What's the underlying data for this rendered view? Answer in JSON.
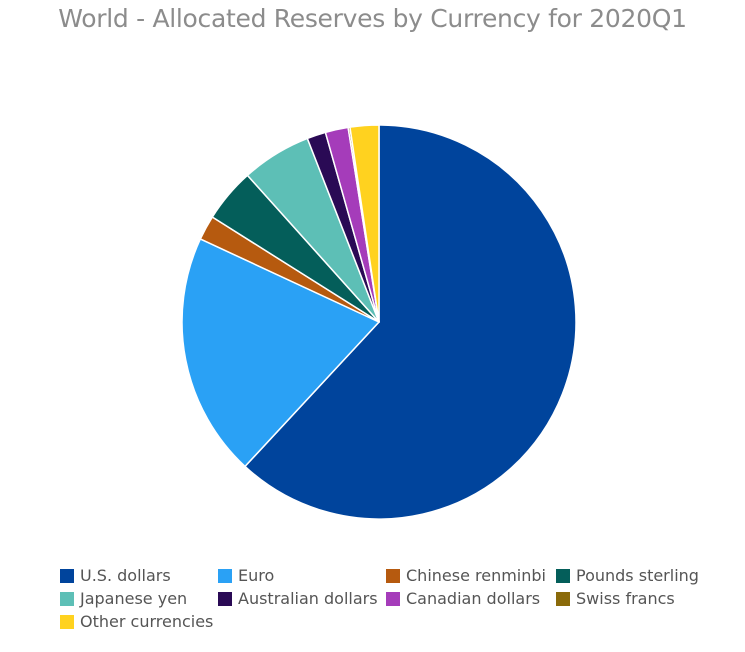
{
  "chart_data": {
    "type": "pie",
    "title": "World - Allocated Reserves by Currency for 2020Q1",
    "start_angle_deg": 0,
    "direction": "clockwise",
    "slices": [
      {
        "label": "U.S. dollars",
        "value": 61.99,
        "color": "#00449c"
      },
      {
        "label": "Euro",
        "value": 20.05,
        "color": "#2aa1f5"
      },
      {
        "label": "Chinese renminbi",
        "value": 2.02,
        "color": "#b65a0f"
      },
      {
        "label": "Pounds sterling",
        "value": 4.43,
        "color": "#045e5a"
      },
      {
        "label": "Japanese yen",
        "value": 5.72,
        "color": "#5dbfb6"
      },
      {
        "label": "Australian dollars",
        "value": 1.54,
        "color": "#2a0a55"
      },
      {
        "label": "Canadian dollars",
        "value": 1.88,
        "color": "#a53cba"
      },
      {
        "label": "Swiss francs",
        "value": 0.15,
        "color": "#8a6a0a"
      },
      {
        "label": "Other currencies",
        "value": 2.36,
        "color": "#ffd21f"
      }
    ],
    "legend_position": "bottom"
  }
}
